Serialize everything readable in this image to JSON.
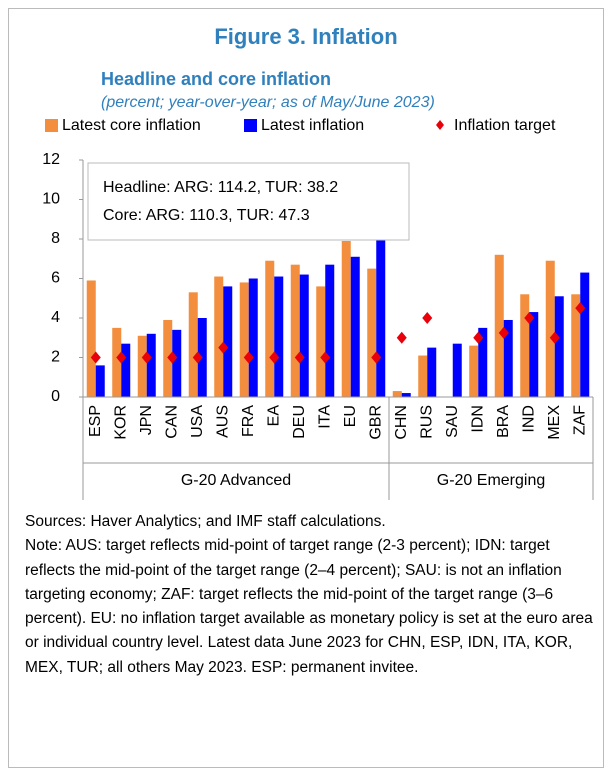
{
  "chart_data": {
    "type": "bar",
    "title": "Figure 3. Inflation",
    "subtitle": "Headline and core inflation",
    "units": "(percent; year-over-year; as of May/June 2023)",
    "categories": [
      "ESP",
      "KOR",
      "JPN",
      "CAN",
      "USA",
      "AUS",
      "FRA",
      "EA",
      "DEU",
      "ITA",
      "EU",
      "GBR",
      "CHN",
      "RUS",
      "SAU",
      "IDN",
      "BRA",
      "IND",
      "MEX",
      "ZAF"
    ],
    "groups": [
      {
        "name": "G-20 Advanced",
        "count": 12
      },
      {
        "name": "G-20 Emerging",
        "count": 8
      }
    ],
    "series": [
      {
        "name": "Latest core inflation",
        "color": "#f28e3d",
        "values": [
          5.9,
          3.5,
          3.1,
          3.9,
          5.3,
          6.1,
          5.8,
          6.9,
          6.7,
          5.6,
          7.9,
          6.5,
          0.3,
          2.1,
          null,
          2.6,
          7.2,
          5.2,
          6.9,
          5.2
        ]
      },
      {
        "name": "Latest inflation",
        "color": "#0000ff",
        "values": [
          1.6,
          2.7,
          3.2,
          3.4,
          4.0,
          5.6,
          6.0,
          6.1,
          6.2,
          6.7,
          7.1,
          8.7,
          0.2,
          2.5,
          2.7,
          3.5,
          3.9,
          4.3,
          5.1,
          6.3
        ]
      },
      {
        "name": "Inflation target",
        "color": "#e8000b",
        "marker": "diamond",
        "values": [
          2,
          2,
          2,
          2,
          2,
          2.5,
          2,
          2,
          2,
          2,
          null,
          2,
          3,
          4,
          null,
          3,
          3.25,
          4,
          3,
          4.5
        ]
      }
    ],
    "annotation": [
      "Headline: ARG: 114.2, TUR: 38.2",
      "Core: ARG: 110.3, TUR: 47.3"
    ],
    "ylim": [
      0,
      12
    ],
    "yticks": [
      0,
      2,
      4,
      6,
      8,
      10,
      12
    ],
    "sources": "Sources: Haver Analytics; and IMF staff calculations.",
    "note": "Note: AUS: target reflects mid-point of target range (2-3 percent); IDN: target reflects the mid-point of the target range (2–4 percent); SAU: is not an inflation targeting economy; ZAF: target reflects the mid-point of the target range (3–6 percent). EU: no inflation target available as monetary policy is set at the euro area or individual country level. Latest data June 2023 for CHN, ESP, IDN, ITA, KOR, MEX, TUR; all others May 2023. ESP: permanent invitee."
  }
}
